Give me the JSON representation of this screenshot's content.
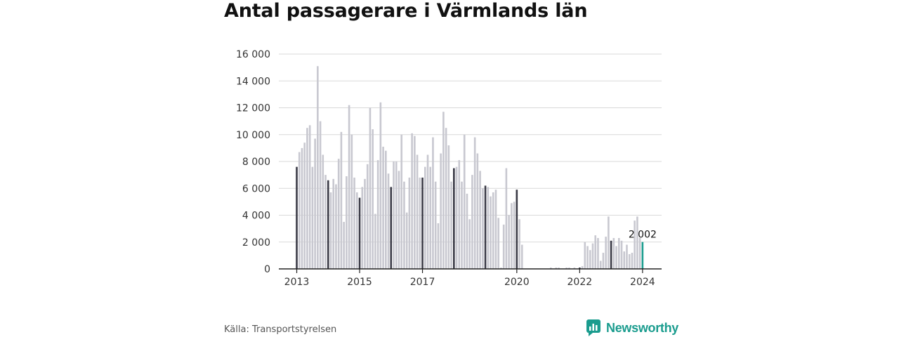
{
  "title": "Antal passagerare i Värmlands län",
  "source": "Källa: Transportstyrelsen",
  "brand": "Newsworthy",
  "colors": {
    "bar": "#c8c8d0",
    "highlight": "#3a3a46",
    "last": "#1a9c8e",
    "brand": "#1a9c8e"
  },
  "chart_data": {
    "type": "bar",
    "ylim": [
      0,
      16000
    ],
    "yticks": [
      0,
      2000,
      4000,
      6000,
      8000,
      10000,
      12000,
      14000,
      16000
    ],
    "ytick_labels": [
      "0",
      "2 000",
      "4 000",
      "6 000",
      "8 000",
      "10 000",
      "12 000",
      "14 000",
      "16 000"
    ],
    "xtick_labels": [
      {
        "label": "2013",
        "index": 0
      },
      {
        "label": "2015",
        "index": 24
      },
      {
        "label": "2017",
        "index": 48
      },
      {
        "label": "2020",
        "index": 84
      },
      {
        "label": "2022",
        "index": 108
      },
      {
        "label": "2024",
        "index": 132
      }
    ],
    "start_period": "2013-01",
    "highlight_rule": "January bars shown dark",
    "annotation": {
      "text": "2 002",
      "index": 132
    },
    "values": [
      7600,
      8700,
      9000,
      9400,
      10500,
      10700,
      7600,
      9700,
      15100,
      11000,
      8500,
      7000,
      6600,
      5700,
      6700,
      6300,
      8200,
      10200,
      3500,
      6900,
      12200,
      10000,
      6800,
      5700,
      5300,
      6100,
      6700,
      7800,
      12000,
      10400,
      4100,
      8100,
      12400,
      9100,
      8800,
      7100,
      6100,
      8000,
      8000,
      7300,
      10000,
      6500,
      4200,
      6800,
      10100,
      9900,
      8500,
      6800,
      6800,
      7600,
      8500,
      7600,
      9800,
      6500,
      3400,
      8600,
      11700,
      10500,
      9200,
      6500,
      7500,
      7600,
      8100,
      6500,
      10000,
      5600,
      3700,
      7000,
      9800,
      8600,
      7300,
      6000,
      6200,
      6100,
      5400,
      5700,
      5900,
      3800,
      100,
      3300,
      7500,
      4000,
      4900,
      5000,
      5900,
      3700,
      1800,
      0,
      0,
      0,
      0,
      0,
      0,
      0,
      0,
      0,
      0,
      100,
      0,
      100,
      100,
      0,
      0,
      100,
      100,
      0,
      100,
      0,
      100,
      200,
      2000,
      1700,
      1400,
      1900,
      2500,
      2300,
      600,
      1200,
      2400,
      3900,
      2100,
      2300,
      1700,
      2300,
      2100,
      1300,
      1800,
      1100,
      1200,
      3600,
      3900,
      2300,
      2002
    ]
  }
}
